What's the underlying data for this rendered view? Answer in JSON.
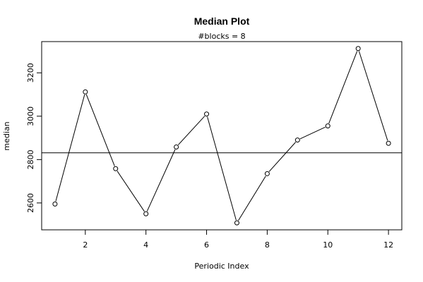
{
  "chart_data": {
    "type": "line",
    "title": "Median Plot",
    "subtitle": "#blocks =  8",
    "xlabel": "Periodic Index",
    "ylabel": "median",
    "x": [
      1,
      2,
      3,
      4,
      5,
      6,
      7,
      8,
      9,
      10,
      11,
      12
    ],
    "series": [
      {
        "values": [
          2595,
          3112,
          2758,
          2550,
          2858,
          3010,
          2508,
          2735,
          2890,
          2955,
          3312,
          2875
        ]
      }
    ],
    "reference_line": 2831,
    "xlim": [
      0.56,
      12.44
    ],
    "ylim": [
      2476,
      3344
    ],
    "xticks": [
      2,
      4,
      6,
      8,
      10,
      12
    ],
    "yticks": [
      2600,
      2800,
      3000,
      3200
    ],
    "marker": "open-circle",
    "grid": false
  }
}
